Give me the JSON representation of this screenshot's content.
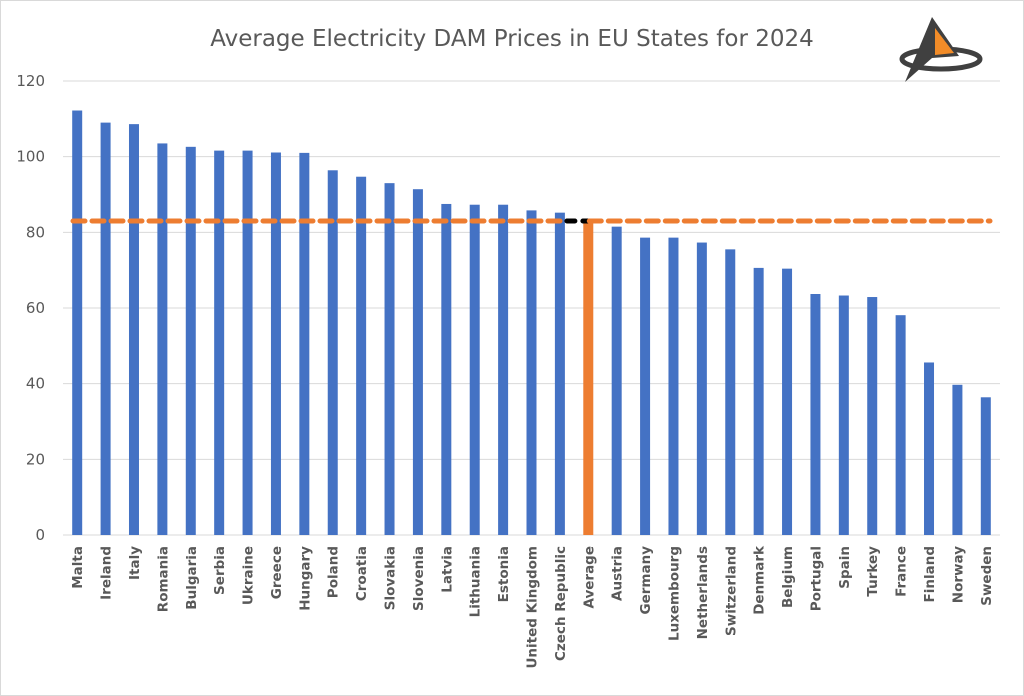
{
  "chart_data": {
    "type": "bar",
    "title": "Average Electricity DAM Prices in EU States for 2024",
    "xlabel": "",
    "ylabel": "",
    "ylim": [
      0,
      120
    ],
    "yticks": [
      0,
      20,
      40,
      60,
      80,
      100,
      120
    ],
    "grid": true,
    "legend": "none",
    "categories": [
      "Malta",
      "Ireland",
      "Italy",
      "Romania",
      "Bulgaria",
      "Serbia",
      "Ukraine",
      "Greece",
      "Hungary",
      "Poland",
      "Croatia",
      "Slovakia",
      "Slovenia",
      "Latvia",
      "Lithuania",
      "Estonia",
      "United Kingdom",
      "Czech Republic",
      "Average",
      "Austria",
      "Germany",
      "Luxembourg",
      "Netherlands",
      "Switzerland",
      "Denmark",
      "Belgium",
      "Portugal",
      "Spain",
      "Turkey",
      "France",
      "Finland",
      "Norway",
      "Sweden"
    ],
    "values": [
      112.2,
      109.0,
      108.6,
      103.5,
      102.6,
      101.6,
      101.6,
      101.1,
      101.0,
      96.4,
      94.7,
      93.0,
      91.4,
      87.5,
      87.3,
      87.3,
      85.8,
      85.2,
      83.0,
      81.5,
      78.6,
      78.6,
      77.3,
      75.5,
      70.6,
      70.4,
      63.7,
      63.3,
      62.9,
      58.1,
      45.6,
      39.7,
      36.4
    ],
    "highlight_category": "Average",
    "reference_line": {
      "label": "Average",
      "value": 83.0,
      "style": "dashed"
    },
    "colors": {
      "bar": "#4472C4",
      "highlight": "#ED7D31",
      "reference_line": "#ED7D31",
      "reference_line_near_average": "#000000",
      "grid": "#d9d9d9",
      "text": "#595959"
    }
  },
  "logo": {
    "name": "compass-arrow-logo",
    "colors": {
      "dark": "#404040",
      "accent": "#F28C28"
    }
  }
}
